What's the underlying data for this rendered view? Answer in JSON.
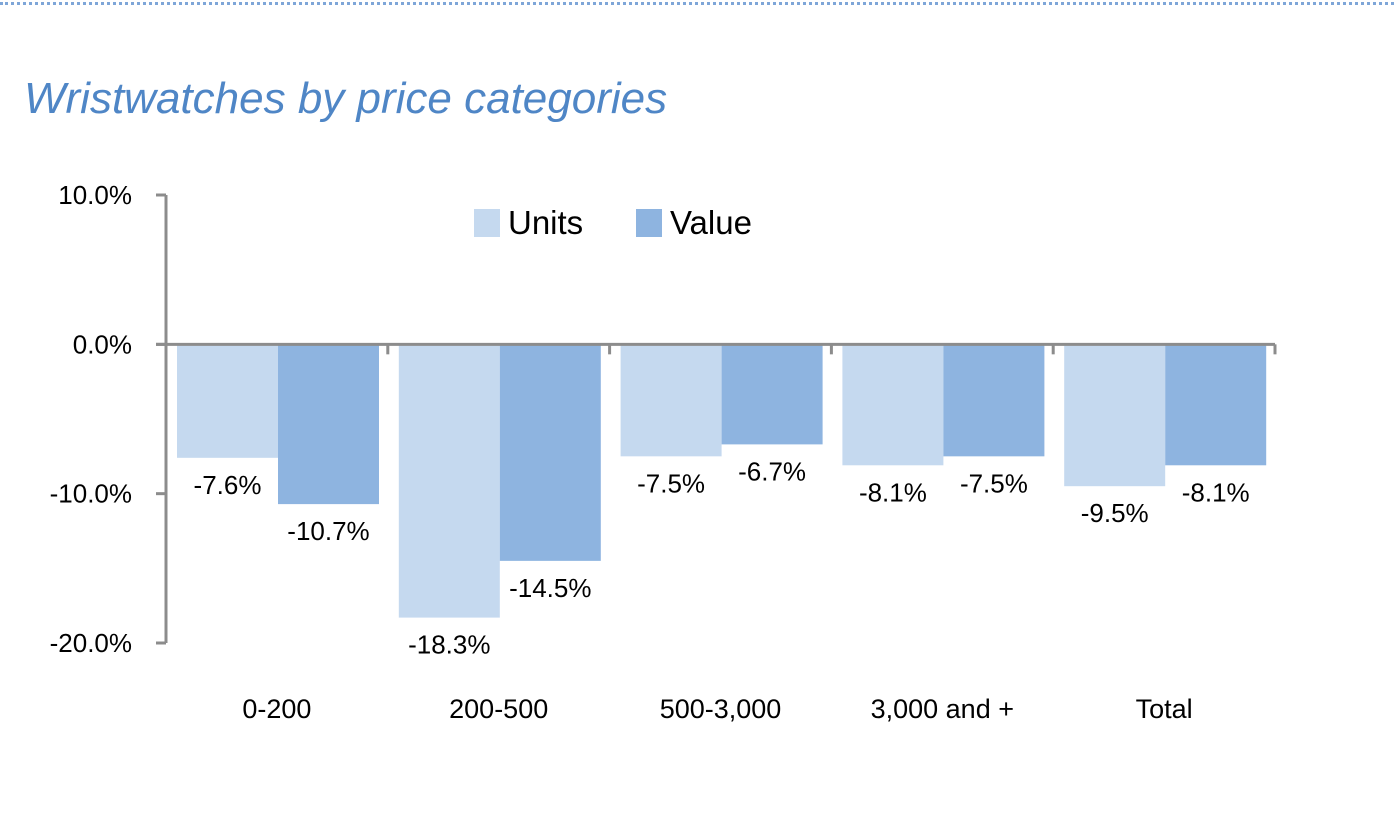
{
  "chart_data": {
    "type": "bar",
    "title": "Wristwatches by price categories",
    "categories": [
      "0-200",
      "200-500",
      "500-3,000",
      "3,000 and +",
      "Total"
    ],
    "series": [
      {
        "name": "Units",
        "color": "#c5d9ef",
        "values": [
          -7.6,
          -18.3,
          -7.5,
          -8.1,
          -9.5
        ],
        "labels": [
          "-7.6%",
          "-18.3%",
          "-7.5%",
          "-8.1%",
          "-9.5%"
        ]
      },
      {
        "name": "Value",
        "color": "#8eb4e0",
        "values": [
          -10.7,
          -14.5,
          -6.7,
          -7.5,
          -8.1
        ],
        "labels": [
          "-10.7%",
          "-14.5%",
          "-6.7%",
          "-7.5%",
          "-8.1%"
        ]
      }
    ],
    "ylim": [
      -20,
      10
    ],
    "yticks": [
      10,
      0,
      -10,
      -20
    ],
    "ytick_labels": [
      "10.0%",
      "0.0%",
      "-10.0%",
      "-20.0%"
    ],
    "xlabel": "",
    "ylabel": "",
    "legend": "top-center",
    "grid": false
  }
}
